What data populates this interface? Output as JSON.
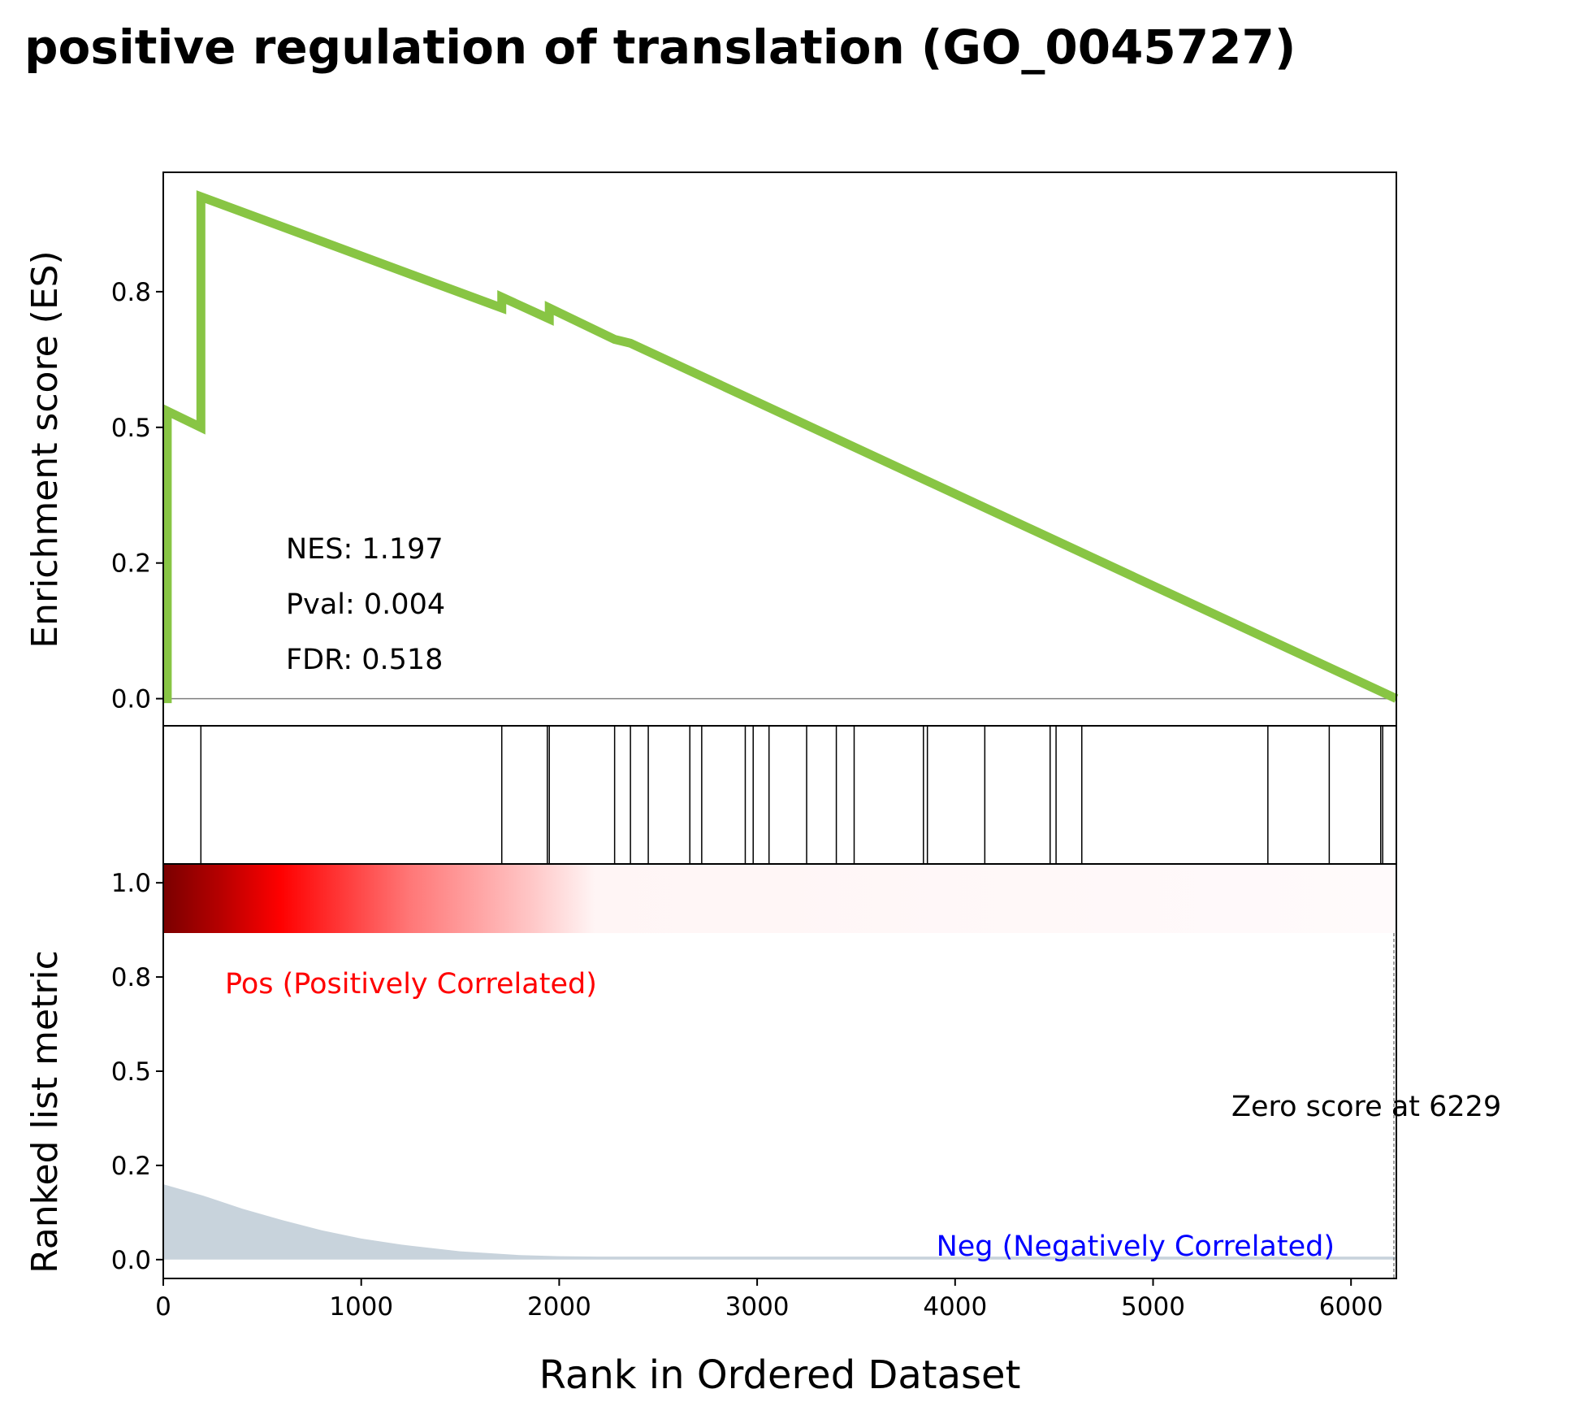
{
  "title": "positive regulation of translation (GO_0045727)",
  "chart_data": [
    {
      "type": "line",
      "ylabel": "Enrichment score (ES)",
      "xlim": [
        0,
        6229
      ],
      "ylim": [
        -0.05,
        0.97
      ],
      "yticks": [
        0.0,
        0.25,
        0.5,
        0.75
      ],
      "ytick_labels": [
        "0.0",
        "0.2",
        "0.5",
        "0.8"
      ],
      "series": [
        {
          "color": "#88c544",
          "x": [
            0,
            20,
            20,
            190,
            190,
            1710,
            1710,
            1950,
            1950,
            2280,
            2360,
            6229
          ],
          "y": [
            0.0,
            0.0,
            0.53,
            0.5,
            0.925,
            0.72,
            0.74,
            0.7,
            0.72,
            0.662,
            0.655,
            0.0
          ]
        }
      ],
      "annotations": {
        "nes": "NES: 1.197",
        "pval": "Pval: 0.004",
        "fdr": "FDR: 0.518"
      }
    },
    {
      "type": "hits",
      "hit_positions": [
        190,
        1710,
        1940,
        1950,
        2280,
        2360,
        2450,
        2660,
        2720,
        2940,
        2980,
        3060,
        3250,
        3400,
        3490,
        3840,
        3860,
        4150,
        4480,
        4510,
        4640,
        5580,
        5890,
        6150,
        6160
      ]
    },
    {
      "type": "area",
      "ylabel": "Ranked list metric",
      "xlabel": "Rank in Ordered Dataset",
      "xlim": [
        0,
        6229
      ],
      "ylim": [
        -0.05,
        1.05
      ],
      "xticks": [
        0,
        1000,
        2000,
        3000,
        4000,
        5000,
        6000
      ],
      "xtick_labels": [
        "0",
        "1000",
        "2000",
        "3000",
        "4000",
        "5000",
        "6000"
      ],
      "yticks": [
        0.0,
        0.25,
        0.5,
        0.75,
        1.0
      ],
      "ytick_labels": [
        "0.0",
        "0.2",
        "0.5",
        "0.8",
        "1.0"
      ],
      "fill_color": "#c8d3dc",
      "x": [
        0,
        200,
        400,
        600,
        800,
        1000,
        1200,
        1500,
        1800,
        2000,
        2200,
        6229
      ],
      "y": [
        0.2,
        0.17,
        0.135,
        0.105,
        0.078,
        0.056,
        0.04,
        0.022,
        0.012,
        0.009,
        0.008,
        0.008
      ],
      "pos_label": "Pos (Positively Correlated)",
      "neg_label": "Neg (Negatively Correlated)",
      "zero_label": "Zero score at 6229",
      "zero_x": 6229,
      "pos_color": "#ff0000",
      "neg_color": "#0000ff"
    }
  ]
}
